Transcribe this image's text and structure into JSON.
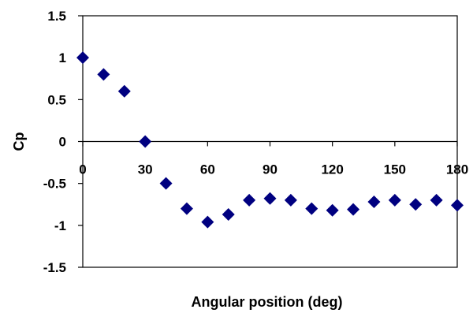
{
  "chart_data": {
    "type": "scatter",
    "title": "",
    "xlabel": "Angular position (deg)",
    "ylabel": "Cp",
    "xlim": [
      0,
      180
    ],
    "ylim": [
      -1.5,
      1.5
    ],
    "x_ticks": [
      0,
      30,
      60,
      90,
      120,
      150,
      180
    ],
    "y_ticks": [
      1.5,
      1,
      0.5,
      0,
      -0.5,
      -1,
      -1.5
    ],
    "y_tick_labels": [
      "1.5",
      "1",
      "0.5",
      "0",
      "-0.5",
      "-1",
      "-1.5"
    ],
    "grid": false,
    "legend": "none",
    "marker": "diamond",
    "marker_color": "#000080",
    "series": [
      {
        "x": [
          0,
          10,
          20,
          30,
          40,
          50,
          60,
          70,
          80,
          90,
          100,
          110,
          120,
          130,
          140,
          150,
          160,
          170,
          180
        ],
        "y": [
          1.0,
          0.8,
          0.6,
          0.0,
          -0.5,
          -0.8,
          -0.96,
          -0.87,
          -0.7,
          -0.68,
          -0.7,
          -0.8,
          -0.82,
          -0.81,
          -0.72,
          -0.7,
          -0.75,
          -0.7,
          -0.76
        ]
      }
    ]
  }
}
